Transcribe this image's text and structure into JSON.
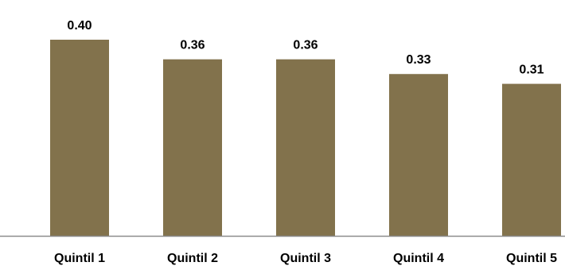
{
  "chart_data": {
    "type": "bar",
    "categories": [
      "Quintil 1",
      "Quintil 2",
      "Quintil 3",
      "Quintil 4",
      "Quintil 5"
    ],
    "values": [
      0.4,
      0.36,
      0.36,
      0.33,
      0.31
    ],
    "value_labels": [
      "0.40",
      "0.36",
      "0.36",
      "0.33",
      "0.31"
    ],
    "title": "",
    "xlabel": "",
    "ylabel": "",
    "ylim": [
      0,
      0.4
    ],
    "grid": false,
    "legend": "none",
    "colors": {
      "bar": "#82724C",
      "axis": "#8c8c8c"
    }
  }
}
